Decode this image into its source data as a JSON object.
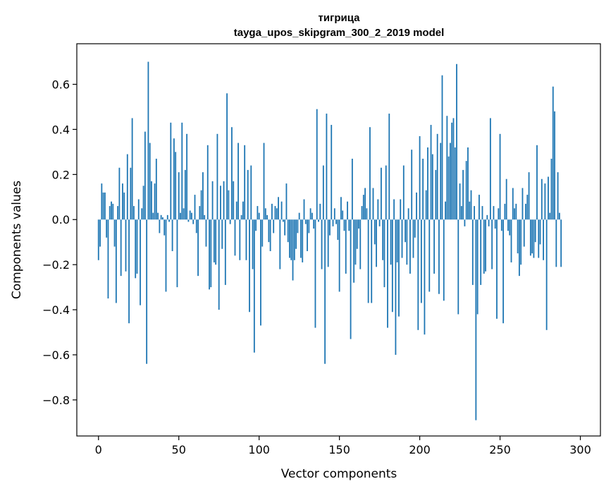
{
  "chart_data": {
    "type": "bar",
    "title": "тигрица",
    "subtitle": "tayga_upos_skipgram_300_2_2019 model",
    "xlabel": "Vector components",
    "ylabel": "Components values",
    "xlim": [
      -13.5,
      312.5
    ],
    "ylim": [
      -0.96,
      0.78
    ],
    "x_ticks": [
      0,
      50,
      100,
      150,
      200,
      250,
      300
    ],
    "x_tick_labels": [
      "0",
      "50",
      "100",
      "150",
      "200",
      "250",
      "300"
    ],
    "y_ticks": [
      -0.8,
      -0.6,
      -0.4,
      -0.2,
      0.0,
      0.2,
      0.4,
      0.6
    ],
    "y_tick_labels": [
      "−0.8",
      "−0.6",
      "−0.4",
      "−0.2",
      "0.0",
      "0.2",
      "0.4",
      "0.6"
    ],
    "bar_color": "#1f77b4",
    "grid": false,
    "values": [
      -0.18,
      -0.12,
      0.16,
      0.12,
      0.12,
      -0.08,
      -0.35,
      0.06,
      0.08,
      0.07,
      -0.12,
      -0.37,
      0.06,
      0.23,
      -0.25,
      0.16,
      0.12,
      -0.23,
      0.29,
      -0.46,
      0.23,
      0.45,
      0.06,
      -0.26,
      -0.24,
      0.09,
      -0.38,
      0.05,
      0.15,
      0.39,
      -0.64,
      0.7,
      0.34,
      0.17,
      0.03,
      0.16,
      0.27,
      0.03,
      -0.06,
      0.02,
      0.01,
      -0.07,
      -0.32,
      0.02,
      -0.01,
      0.43,
      -0.14,
      0.36,
      0.3,
      -0.3,
      0.21,
      0.03,
      0.43,
      0.05,
      0.22,
      0.38,
      -0.01,
      0.04,
      0.03,
      -0.02,
      0.11,
      -0.06,
      -0.25,
      0.06,
      0.13,
      0.21,
      0.02,
      -0.12,
      0.33,
      -0.31,
      -0.3,
      0.17,
      -0.19,
      -0.2,
      0.38,
      -0.4,
      0.15,
      -0.13,
      0.17,
      -0.29,
      0.56,
      0.13,
      -0.02,
      0.41,
      0.17,
      -0.16,
      0.08,
      0.34,
      -0.18,
      0.02,
      0.08,
      0.33,
      -0.18,
      0.22,
      -0.41,
      0.24,
      -0.22,
      -0.59,
      -0.05,
      0.06,
      0.03,
      -0.47,
      -0.12,
      0.34,
      0.05,
      0.02,
      -0.1,
      -0.14,
      0.07,
      -0.06,
      0.06,
      0.05,
      0.1,
      -0.22,
      0.08,
      -0.01,
      -0.07,
      0.16,
      -0.1,
      -0.17,
      -0.18,
      -0.27,
      -0.18,
      -0.13,
      -0.06,
      0.03,
      -0.17,
      -0.19,
      0.09,
      -0.02,
      -0.14,
      -0.06,
      0.05,
      0.03,
      -0.04,
      -0.48,
      0.49,
      -0.01,
      0.07,
      -0.22,
      0.24,
      -0.64,
      0.47,
      -0.21,
      -0.07,
      0.42,
      -0.03,
      0.05,
      -0.02,
      -0.09,
      -0.32,
      0.1,
      0.04,
      -0.05,
      -0.24,
      0.08,
      -0.05,
      -0.53,
      0.27,
      -0.28,
      -0.2,
      -0.13,
      -0.04,
      -0.22,
      0.06,
      0.11,
      0.14,
      0.05,
      -0.37,
      0.41,
      -0.37,
      0.14,
      -0.11,
      -0.21,
      0.09,
      -0.03,
      0.23,
      -0.18,
      -0.3,
      0.24,
      -0.48,
      0.47,
      -0.2,
      -0.41,
      0.09,
      -0.6,
      -0.19,
      -0.43,
      0.09,
      -0.17,
      0.24,
      -0.1,
      -0.2,
      0.05,
      -0.24,
      0.31,
      -0.17,
      -0.08,
      0.12,
      -0.49,
      0.37,
      -0.37,
      0.27,
      -0.51,
      0.13,
      0.32,
      -0.32,
      0.42,
      0.29,
      -0.24,
      0.22,
      0.38,
      -0.33,
      0.34,
      0.64,
      -0.36,
      0.08,
      0.46,
      0.28,
      0.34,
      0.43,
      0.45,
      0.32,
      0.69,
      -0.42,
      0.16,
      0.06,
      0.22,
      -0.03,
      0.26,
      0.32,
      0.08,
      0.13,
      -0.29,
      0.06,
      -0.89,
      -0.42,
      0.11,
      -0.29,
      0.06,
      -0.24,
      -0.23,
      0.02,
      -0.03,
      0.45,
      -0.22,
      0.06,
      -0.04,
      -0.44,
      0.05,
      0.38,
      -0.05,
      -0.46,
      0.07,
      0.18,
      -0.05,
      -0.07,
      -0.19,
      0.14,
      0.05,
      0.07,
      -0.15,
      -0.25,
      -0.2,
      0.14,
      -0.12,
      0.07,
      0.11,
      0.21,
      -0.16,
      -0.15,
      -0.17,
      -0.1,
      0.33,
      -0.17,
      -0.11,
      0.18,
      -0.18,
      0.16,
      -0.49,
      0.19,
      0.03,
      0.27,
      0.59,
      0.48,
      -0.21,
      0.21,
      0.03,
      -0.21
    ]
  }
}
